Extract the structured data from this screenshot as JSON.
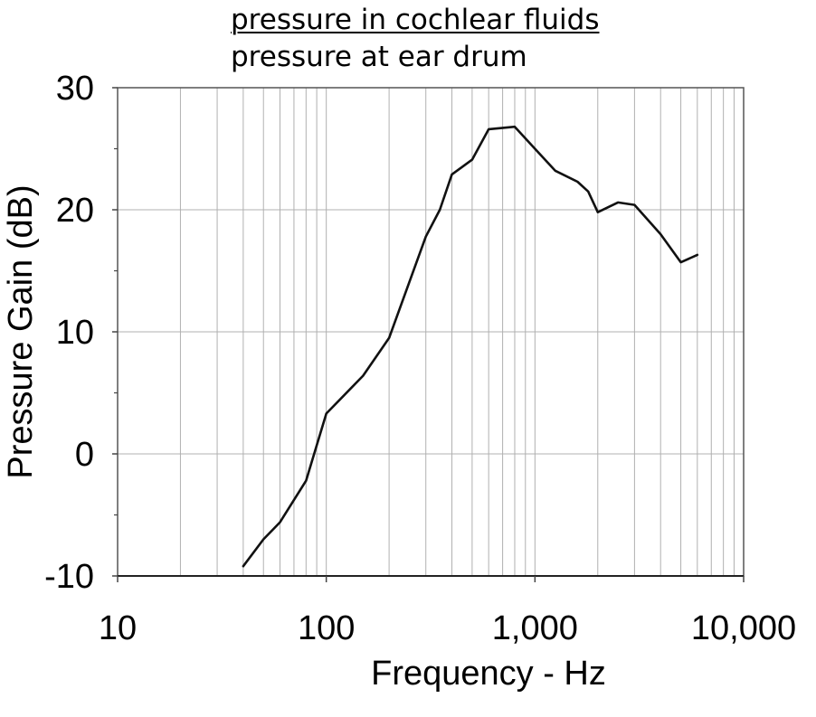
{
  "chart_data": {
    "type": "line",
    "title_numerator": "pressure in cochlear fluids",
    "title_denominator": "pressure at ear drum",
    "xlabel": "Frequency - Hz",
    "ylabel": "Pressure Gain (dB)",
    "xscale": "log",
    "xlim": [
      10,
      10000
    ],
    "ylim": [
      -10,
      30
    ],
    "x_ticks": [
      {
        "value": 10,
        "label": "10"
      },
      {
        "value": 100,
        "label": "100"
      },
      {
        "value": 1000,
        "label": "1,000"
      },
      {
        "value": 10000,
        "label": "10,000"
      }
    ],
    "y_ticks": [
      {
        "value": -10,
        "label": "-10"
      },
      {
        "value": 0,
        "label": "0"
      },
      {
        "value": 10,
        "label": "10"
      },
      {
        "value": 20,
        "label": "20"
      },
      {
        "value": 30,
        "label": "30"
      }
    ],
    "grid": true,
    "line_color": "#111111",
    "grid_color": "#b0b0b0",
    "series": [
      {
        "x": [
          40,
          50,
          60,
          80,
          100,
          150,
          200,
          300,
          350,
          400,
          500,
          600,
          800,
          1000,
          1250,
          1600,
          1800,
          2000,
          2500,
          3000,
          4000,
          5000,
          6000
        ],
        "y": [
          -9.2,
          -7.0,
          -5.6,
          -2.2,
          3.3,
          6.4,
          9.5,
          17.8,
          20.0,
          22.9,
          24.1,
          26.6,
          26.8,
          25.0,
          23.2,
          22.3,
          21.5,
          19.8,
          20.6,
          20.4,
          18.0,
          15.7,
          16.3
        ]
      }
    ]
  }
}
